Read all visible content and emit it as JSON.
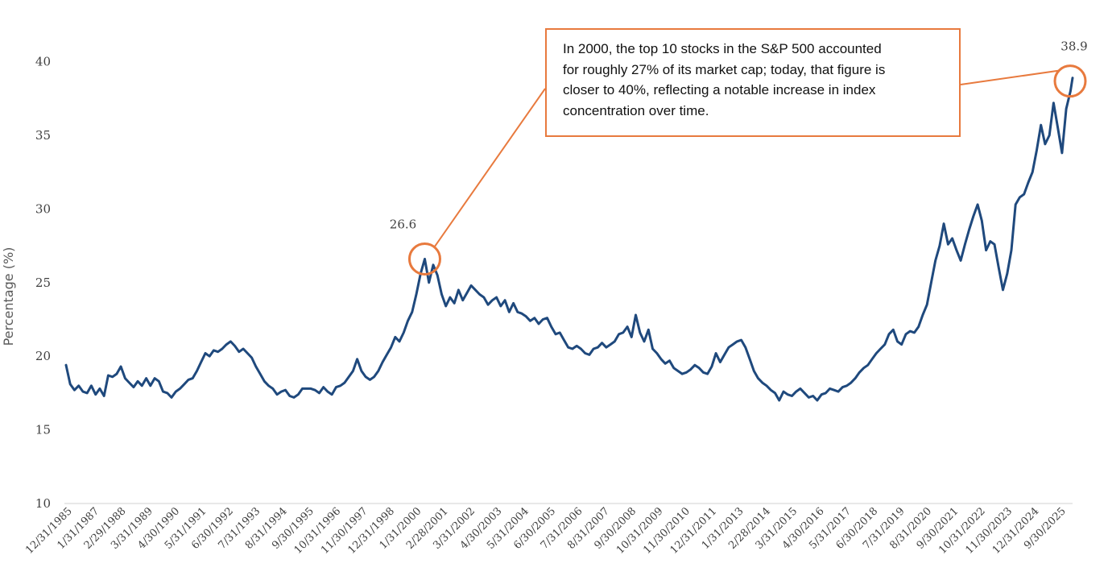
{
  "chart_data": {
    "type": "line",
    "title": "",
    "xlabel": "",
    "ylabel": "Percentage (%)",
    "ylim": [
      10,
      42
    ],
    "yticks": [
      10,
      15,
      20,
      25,
      30,
      35,
      40
    ],
    "grid": false,
    "x_tick_labels": [
      "12/31/1985",
      "1/31/1987",
      "2/29/1988",
      "3/31/1989",
      "4/30/1990",
      "5/31/1991",
      "6/30/1992",
      "7/31/1993",
      "8/31/1994",
      "9/30/1995",
      "10/31/1996",
      "11/30/1997",
      "12/31/1998",
      "1/31/2000",
      "2/28/2001",
      "3/31/2002",
      "4/30/2003",
      "5/31/2004",
      "6/30/2005",
      "7/31/2006",
      "8/31/2007",
      "9/30/2008",
      "10/31/2009",
      "11/30/2010",
      "12/31/2011",
      "1/31/2013",
      "2/28/2014",
      "3/31/2015",
      "4/30/2016",
      "5/31/2017",
      "6/30/2018",
      "7/31/2019",
      "8/31/2020",
      "9/30/2021",
      "10/31/2022",
      "11/30/2023",
      "12/31/2024",
      "9/30/2025"
    ],
    "series": [
      {
        "color": "#1F497D",
        "points": [
          [
            "1985-12",
            19.4
          ],
          [
            "1986-02",
            18.1
          ],
          [
            "1986-04",
            17.7
          ],
          [
            "1986-06",
            18.0
          ],
          [
            "1986-08",
            17.6
          ],
          [
            "1986-10",
            17.5
          ],
          [
            "1986-12",
            18.0
          ],
          [
            "1987-02",
            17.4
          ],
          [
            "1987-04",
            17.8
          ],
          [
            "1987-06",
            17.3
          ],
          [
            "1987-08",
            18.7
          ],
          [
            "1987-10",
            18.6
          ],
          [
            "1987-12",
            18.8
          ],
          [
            "1988-02",
            19.3
          ],
          [
            "1988-04",
            18.5
          ],
          [
            "1988-06",
            18.2
          ],
          [
            "1988-08",
            17.9
          ],
          [
            "1988-10",
            18.3
          ],
          [
            "1988-12",
            18.0
          ],
          [
            "1989-02",
            18.5
          ],
          [
            "1989-04",
            18.0
          ],
          [
            "1989-06",
            18.5
          ],
          [
            "1989-08",
            18.3
          ],
          [
            "1989-10",
            17.6
          ],
          [
            "1989-12",
            17.5
          ],
          [
            "1990-02",
            17.2
          ],
          [
            "1990-04",
            17.6
          ],
          [
            "1990-06",
            17.8
          ],
          [
            "1990-08",
            18.1
          ],
          [
            "1990-10",
            18.4
          ],
          [
            "1990-12",
            18.5
          ],
          [
            "1991-02",
            19.0
          ],
          [
            "1991-04",
            19.6
          ],
          [
            "1991-06",
            20.2
          ],
          [
            "1991-08",
            20.0
          ],
          [
            "1991-10",
            20.4
          ],
          [
            "1991-12",
            20.3
          ],
          [
            "1992-02",
            20.5
          ],
          [
            "1992-04",
            20.8
          ],
          [
            "1992-06",
            21.0
          ],
          [
            "1992-08",
            20.7
          ],
          [
            "1992-10",
            20.3
          ],
          [
            "1992-12",
            20.5
          ],
          [
            "1993-02",
            20.2
          ],
          [
            "1993-04",
            19.9
          ],
          [
            "1993-06",
            19.3
          ],
          [
            "1993-08",
            18.8
          ],
          [
            "1993-10",
            18.3
          ],
          [
            "1993-12",
            18.0
          ],
          [
            "1994-02",
            17.8
          ],
          [
            "1994-04",
            17.4
          ],
          [
            "1994-06",
            17.6
          ],
          [
            "1994-08",
            17.7
          ],
          [
            "1994-10",
            17.3
          ],
          [
            "1994-12",
            17.2
          ],
          [
            "1995-02",
            17.4
          ],
          [
            "1995-04",
            17.8
          ],
          [
            "1995-06",
            17.8
          ],
          [
            "1995-08",
            17.8
          ],
          [
            "1995-10",
            17.7
          ],
          [
            "1995-12",
            17.5
          ],
          [
            "1996-02",
            17.9
          ],
          [
            "1996-04",
            17.6
          ],
          [
            "1996-06",
            17.4
          ],
          [
            "1996-08",
            17.9
          ],
          [
            "1996-10",
            18.0
          ],
          [
            "1996-12",
            18.2
          ],
          [
            "1997-02",
            18.6
          ],
          [
            "1997-04",
            19.0
          ],
          [
            "1997-06",
            19.8
          ],
          [
            "1997-08",
            19.0
          ],
          [
            "1997-10",
            18.6
          ],
          [
            "1997-12",
            18.4
          ],
          [
            "1998-02",
            18.6
          ],
          [
            "1998-04",
            19.0
          ],
          [
            "1998-06",
            19.6
          ],
          [
            "1998-08",
            20.1
          ],
          [
            "1998-10",
            20.6
          ],
          [
            "1998-12",
            21.3
          ],
          [
            "1999-02",
            21.0
          ],
          [
            "1999-04",
            21.6
          ],
          [
            "1999-06",
            22.4
          ],
          [
            "1999-08",
            23.0
          ],
          [
            "1999-10",
            24.2
          ],
          [
            "1999-12",
            25.6
          ],
          [
            "2000-02",
            26.6
          ],
          [
            "2000-04",
            25.0
          ],
          [
            "2000-06",
            26.2
          ],
          [
            "2000-08",
            25.5
          ],
          [
            "2000-10",
            24.2
          ],
          [
            "2000-12",
            23.4
          ],
          [
            "2001-02",
            24.0
          ],
          [
            "2001-04",
            23.6
          ],
          [
            "2001-06",
            24.5
          ],
          [
            "2001-08",
            23.8
          ],
          [
            "2001-10",
            24.3
          ],
          [
            "2001-12",
            24.8
          ],
          [
            "2002-02",
            24.5
          ],
          [
            "2002-04",
            24.2
          ],
          [
            "2002-06",
            24.0
          ],
          [
            "2002-08",
            23.5
          ],
          [
            "2002-10",
            23.8
          ],
          [
            "2002-12",
            24.0
          ],
          [
            "2003-02",
            23.4
          ],
          [
            "2003-04",
            23.8
          ],
          [
            "2003-06",
            23.0
          ],
          [
            "2003-08",
            23.6
          ],
          [
            "2003-10",
            23.0
          ],
          [
            "2003-12",
            22.9
          ],
          [
            "2004-02",
            22.7
          ],
          [
            "2004-04",
            22.4
          ],
          [
            "2004-06",
            22.6
          ],
          [
            "2004-08",
            22.2
          ],
          [
            "2004-10",
            22.5
          ],
          [
            "2004-12",
            22.6
          ],
          [
            "2005-02",
            22.0
          ],
          [
            "2005-04",
            21.5
          ],
          [
            "2005-06",
            21.6
          ],
          [
            "2005-08",
            21.1
          ],
          [
            "2005-10",
            20.6
          ],
          [
            "2005-12",
            20.5
          ],
          [
            "2006-02",
            20.7
          ],
          [
            "2006-04",
            20.5
          ],
          [
            "2006-06",
            20.2
          ],
          [
            "2006-08",
            20.1
          ],
          [
            "2006-10",
            20.5
          ],
          [
            "2006-12",
            20.6
          ],
          [
            "2007-02",
            20.9
          ],
          [
            "2007-04",
            20.6
          ],
          [
            "2007-06",
            20.8
          ],
          [
            "2007-08",
            21.0
          ],
          [
            "2007-10",
            21.5
          ],
          [
            "2007-12",
            21.6
          ],
          [
            "2008-02",
            22.0
          ],
          [
            "2008-04",
            21.3
          ],
          [
            "2008-06",
            22.8
          ],
          [
            "2008-08",
            21.6
          ],
          [
            "2008-10",
            21.0
          ],
          [
            "2008-12",
            21.8
          ],
          [
            "2009-02",
            20.5
          ],
          [
            "2009-04",
            20.2
          ],
          [
            "2009-06",
            19.8
          ],
          [
            "2009-08",
            19.5
          ],
          [
            "2009-10",
            19.7
          ],
          [
            "2009-12",
            19.2
          ],
          [
            "2010-02",
            19.0
          ],
          [
            "2010-04",
            18.8
          ],
          [
            "2010-06",
            18.9
          ],
          [
            "2010-08",
            19.1
          ],
          [
            "2010-10",
            19.4
          ],
          [
            "2010-12",
            19.2
          ],
          [
            "2011-02",
            18.9
          ],
          [
            "2011-04",
            18.8
          ],
          [
            "2011-06",
            19.3
          ],
          [
            "2011-08",
            20.2
          ],
          [
            "2011-10",
            19.6
          ],
          [
            "2011-12",
            20.1
          ],
          [
            "2012-02",
            20.6
          ],
          [
            "2012-04",
            20.8
          ],
          [
            "2012-06",
            21.0
          ],
          [
            "2012-08",
            21.1
          ],
          [
            "2012-10",
            20.6
          ],
          [
            "2012-12",
            19.8
          ],
          [
            "2013-02",
            19.0
          ],
          [
            "2013-04",
            18.5
          ],
          [
            "2013-06",
            18.2
          ],
          [
            "2013-08",
            18.0
          ],
          [
            "2013-10",
            17.7
          ],
          [
            "2013-12",
            17.5
          ],
          [
            "2014-02",
            17.0
          ],
          [
            "2014-04",
            17.6
          ],
          [
            "2014-06",
            17.4
          ],
          [
            "2014-08",
            17.3
          ],
          [
            "2014-10",
            17.6
          ],
          [
            "2014-12",
            17.8
          ],
          [
            "2015-02",
            17.5
          ],
          [
            "2015-04",
            17.2
          ],
          [
            "2015-06",
            17.3
          ],
          [
            "2015-08",
            17.0
          ],
          [
            "2015-10",
            17.4
          ],
          [
            "2015-12",
            17.5
          ],
          [
            "2016-02",
            17.8
          ],
          [
            "2016-04",
            17.7
          ],
          [
            "2016-06",
            17.6
          ],
          [
            "2016-08",
            17.9
          ],
          [
            "2016-10",
            18.0
          ],
          [
            "2016-12",
            18.2
          ],
          [
            "2017-02",
            18.5
          ],
          [
            "2017-04",
            18.9
          ],
          [
            "2017-06",
            19.2
          ],
          [
            "2017-08",
            19.4
          ],
          [
            "2017-10",
            19.8
          ],
          [
            "2017-12",
            20.2
          ],
          [
            "2018-02",
            20.5
          ],
          [
            "2018-04",
            20.8
          ],
          [
            "2018-06",
            21.5
          ],
          [
            "2018-08",
            21.8
          ],
          [
            "2018-10",
            21.0
          ],
          [
            "2018-12",
            20.8
          ],
          [
            "2019-02",
            21.5
          ],
          [
            "2019-04",
            21.7
          ],
          [
            "2019-06",
            21.6
          ],
          [
            "2019-08",
            22.0
          ],
          [
            "2019-10",
            22.8
          ],
          [
            "2019-12",
            23.5
          ],
          [
            "2020-02",
            25.0
          ],
          [
            "2020-04",
            26.5
          ],
          [
            "2020-06",
            27.5
          ],
          [
            "2020-08",
            29.0
          ],
          [
            "2020-10",
            27.6
          ],
          [
            "2020-12",
            28.0
          ],
          [
            "2021-02",
            27.2
          ],
          [
            "2021-04",
            26.5
          ],
          [
            "2021-06",
            27.6
          ],
          [
            "2021-08",
            28.6
          ],
          [
            "2021-10",
            29.5
          ],
          [
            "2021-12",
            30.3
          ],
          [
            "2022-02",
            29.2
          ],
          [
            "2022-04",
            27.2
          ],
          [
            "2022-06",
            27.8
          ],
          [
            "2022-08",
            27.6
          ],
          [
            "2022-10",
            26.0
          ],
          [
            "2022-12",
            24.5
          ],
          [
            "2023-02",
            25.6
          ],
          [
            "2023-04",
            27.2
          ],
          [
            "2023-06",
            30.3
          ],
          [
            "2023-08",
            30.8
          ],
          [
            "2023-10",
            31.0
          ],
          [
            "2023-12",
            31.8
          ],
          [
            "2024-02",
            32.5
          ],
          [
            "2024-04",
            34.0
          ],
          [
            "2024-06",
            35.7
          ],
          [
            "2024-08",
            34.4
          ],
          [
            "2024-10",
            35.0
          ],
          [
            "2024-12",
            37.2
          ],
          [
            "2025-02",
            35.5
          ],
          [
            "2025-04",
            33.8
          ],
          [
            "2025-06",
            36.8
          ],
          [
            "2025-08",
            38.0
          ],
          [
            "2025-09",
            38.9
          ]
        ]
      }
    ],
    "annotations": [
      {
        "label": "26.6",
        "date": "2000-02",
        "value": 26.6
      },
      {
        "label": "38.9",
        "date": "2025-09",
        "value": 38.9
      }
    ],
    "callout": {
      "lines": [
        "In 2000, the top 10 stocks in the S&P 500 accounted",
        "for roughly 27% of its market cap; today, that figure is",
        "closer to 40%, reflecting a notable increase in index",
        "concentration over time."
      ],
      "border_color": "#E87A3E"
    }
  }
}
